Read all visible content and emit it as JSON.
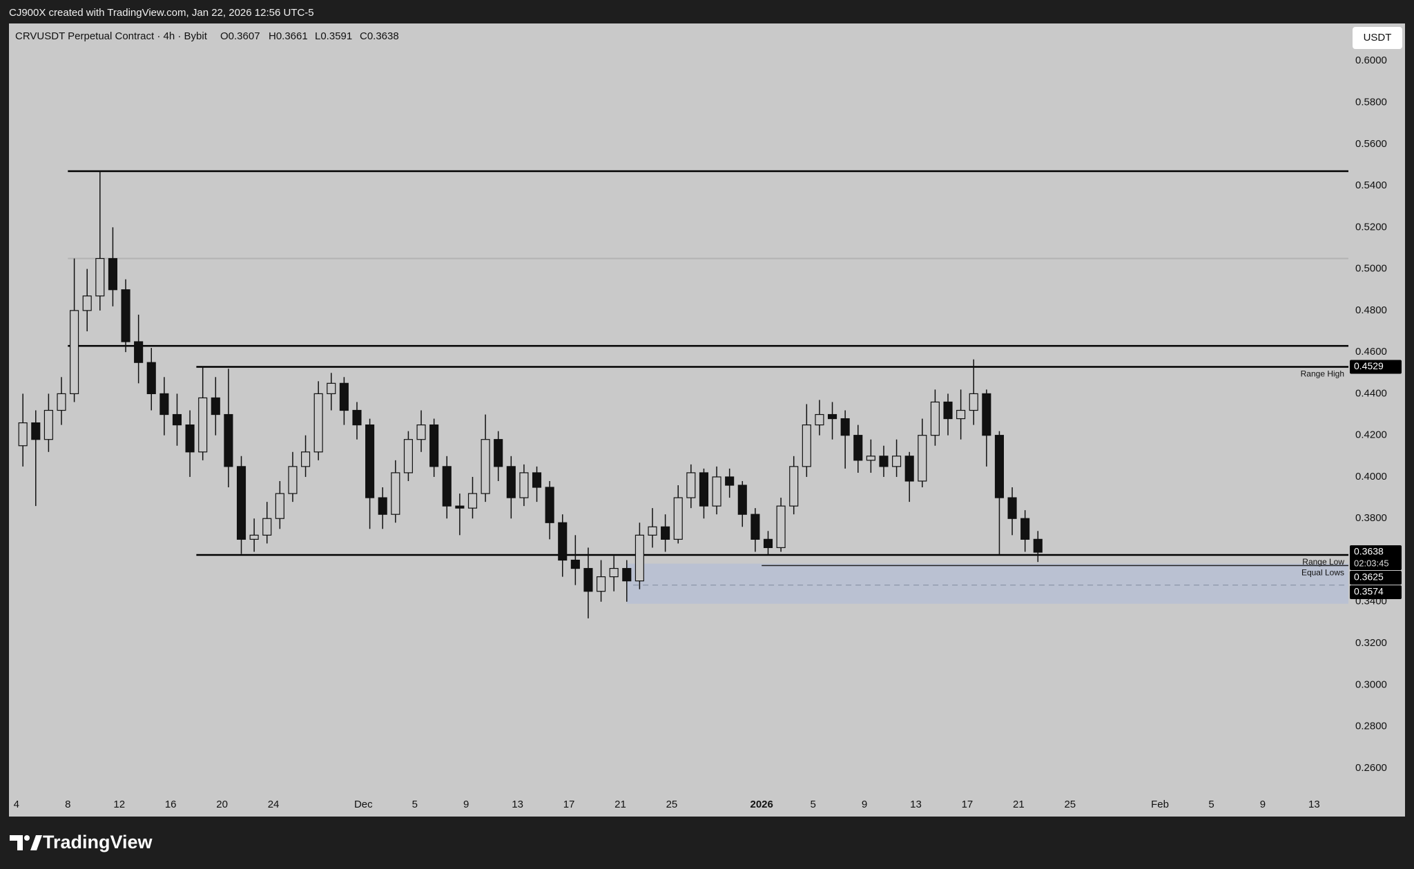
{
  "header": {
    "attribution": "CJ900X created with TradingView.com, Jan 22, 2026 12:56 UTC-5",
    "symbol": "CRVUSDT Perpetual Contract · 4h · Bybit",
    "ohlc": [
      "O0.3607",
      "H0.3661",
      "L0.3591",
      "C0.3638"
    ],
    "currency": "USDT",
    "logo": "TradingView"
  },
  "chart_data": {
    "type": "candlestick",
    "up_color": "#c9c9c9",
    "down_color": "#111111",
    "wick_color": "#111111",
    "x": [
      "2025-11-04",
      "2025-11-05",
      "2025-11-06",
      "2025-11-07",
      "2025-11-08",
      "2025-11-09",
      "2025-11-10",
      "2025-11-11",
      "2025-11-12",
      "2025-11-13",
      "2025-11-14",
      "2025-11-15",
      "2025-11-16",
      "2025-11-17",
      "2025-11-18",
      "2025-11-19",
      "2025-11-20",
      "2025-11-21",
      "2025-11-22",
      "2025-11-23",
      "2025-11-24",
      "2025-11-25",
      "2025-11-26",
      "2025-11-27",
      "2025-11-28",
      "2025-11-29",
      "2025-11-30",
      "2025-12-01",
      "2025-12-02",
      "2025-12-03",
      "2025-12-04",
      "2025-12-05",
      "2025-12-06",
      "2025-12-07",
      "2025-12-08",
      "2025-12-09",
      "2025-12-10",
      "2025-12-11",
      "2025-12-12",
      "2025-12-13",
      "2025-12-14",
      "2025-12-15",
      "2025-12-16",
      "2025-12-17",
      "2025-12-18",
      "2025-12-19",
      "2025-12-20",
      "2025-12-21",
      "2025-12-22",
      "2025-12-23",
      "2025-12-24",
      "2025-12-25",
      "2025-12-26",
      "2025-12-27",
      "2025-12-28",
      "2025-12-29",
      "2025-12-30",
      "2025-12-31",
      "2026-01-01",
      "2026-01-02",
      "2026-01-03",
      "2026-01-04",
      "2026-01-05",
      "2026-01-06",
      "2026-01-07",
      "2026-01-08",
      "2026-01-09",
      "2026-01-10",
      "2026-01-11",
      "2026-01-12",
      "2026-01-13",
      "2026-01-14",
      "2026-01-15",
      "2026-01-16",
      "2026-01-17",
      "2026-01-18",
      "2026-01-19",
      "2026-01-20",
      "2026-01-21",
      "2026-01-22"
    ],
    "open": [
      0.415,
      0.426,
      0.418,
      0.432,
      0.44,
      0.48,
      0.487,
      0.505,
      0.49,
      0.465,
      0.455,
      0.44,
      0.43,
      0.425,
      0.412,
      0.438,
      0.43,
      0.405,
      0.37,
      0.372,
      0.38,
      0.392,
      0.405,
      0.412,
      0.44,
      0.445,
      0.432,
      0.425,
      0.39,
      0.382,
      0.402,
      0.418,
      0.425,
      0.405,
      0.386,
      0.385,
      0.392,
      0.418,
      0.405,
      0.39,
      0.402,
      0.395,
      0.378,
      0.36,
      0.356,
      0.345,
      0.352,
      0.356,
      0.35,
      0.372,
      0.376,
      0.37,
      0.39,
      0.402,
      0.386,
      0.4,
      0.396,
      0.382,
      0.37,
      0.366,
      0.386,
      0.405,
      0.425,
      0.43,
      0.428,
      0.42,
      0.408,
      0.41,
      0.405,
      0.41,
      0.398,
      0.42,
      0.436,
      0.428,
      0.432,
      0.44,
      0.42,
      0.39,
      0.38,
      0.37
    ],
    "high": [
      0.44,
      0.432,
      0.44,
      0.448,
      0.505,
      0.5,
      0.547,
      0.52,
      0.495,
      0.478,
      0.462,
      0.448,
      0.44,
      0.432,
      0.453,
      0.448,
      0.452,
      0.41,
      0.38,
      0.388,
      0.398,
      0.412,
      0.42,
      0.446,
      0.45,
      0.448,
      0.436,
      0.428,
      0.395,
      0.408,
      0.422,
      0.432,
      0.428,
      0.41,
      0.392,
      0.4,
      0.43,
      0.422,
      0.41,
      0.406,
      0.405,
      0.398,
      0.382,
      0.372,
      0.366,
      0.36,
      0.362,
      0.36,
      0.378,
      0.385,
      0.382,
      0.396,
      0.406,
      0.404,
      0.405,
      0.404,
      0.398,
      0.385,
      0.374,
      0.39,
      0.41,
      0.435,
      0.437,
      0.436,
      0.432,
      0.425,
      0.418,
      0.415,
      0.418,
      0.412,
      0.428,
      0.442,
      0.44,
      0.442,
      0.4565,
      0.442,
      0.422,
      0.395,
      0.384,
      0.374
    ],
    "low": [
      0.405,
      0.386,
      0.412,
      0.425,
      0.436,
      0.47,
      0.48,
      0.482,
      0.46,
      0.445,
      0.432,
      0.42,
      0.415,
      0.4,
      0.408,
      0.42,
      0.395,
      0.363,
      0.364,
      0.368,
      0.375,
      0.388,
      0.4,
      0.408,
      0.432,
      0.425,
      0.418,
      0.375,
      0.375,
      0.378,
      0.398,
      0.412,
      0.4,
      0.38,
      0.372,
      0.38,
      0.388,
      0.398,
      0.38,
      0.386,
      0.388,
      0.37,
      0.352,
      0.348,
      0.332,
      0.34,
      0.345,
      0.34,
      0.346,
      0.366,
      0.364,
      0.368,
      0.385,
      0.38,
      0.382,
      0.39,
      0.376,
      0.364,
      0.3625,
      0.364,
      0.382,
      0.4,
      0.42,
      0.418,
      0.404,
      0.402,
      0.402,
      0.4,
      0.4,
      0.388,
      0.395,
      0.415,
      0.42,
      0.418,
      0.425,
      0.405,
      0.3625,
      0.372,
      0.364,
      0.3591
    ],
    "close": [
      0.426,
      0.418,
      0.432,
      0.44,
      0.48,
      0.487,
      0.505,
      0.49,
      0.465,
      0.455,
      0.44,
      0.43,
      0.425,
      0.412,
      0.438,
      0.43,
      0.405,
      0.37,
      0.372,
      0.38,
      0.392,
      0.405,
      0.412,
      0.44,
      0.445,
      0.432,
      0.425,
      0.39,
      0.382,
      0.402,
      0.418,
      0.425,
      0.405,
      0.386,
      0.385,
      0.392,
      0.418,
      0.405,
      0.39,
      0.402,
      0.395,
      0.378,
      0.36,
      0.356,
      0.345,
      0.352,
      0.356,
      0.35,
      0.372,
      0.376,
      0.37,
      0.39,
      0.402,
      0.386,
      0.4,
      0.396,
      0.382,
      0.37,
      0.366,
      0.386,
      0.405,
      0.425,
      0.43,
      0.428,
      0.42,
      0.408,
      0.41,
      0.405,
      0.41,
      0.398,
      0.42,
      0.436,
      0.428,
      0.432,
      0.44,
      0.42,
      0.39,
      0.38,
      0.37,
      0.3638
    ],
    "xlim": [
      "2025-11-03T10:00:00Z",
      "2026-02-15T16:00:00Z"
    ],
    "xticks": [
      {
        "value": "2025-11-04",
        "label": "4"
      },
      {
        "value": "2025-11-08",
        "label": "8"
      },
      {
        "value": "2025-11-12",
        "label": "12"
      },
      {
        "value": "2025-11-16",
        "label": "16"
      },
      {
        "value": "2025-11-20",
        "label": "20"
      },
      {
        "value": "2025-11-24",
        "label": "24"
      },
      {
        "value": "2025-12-01",
        "label": "Dec"
      },
      {
        "value": "2025-12-05",
        "label": "5"
      },
      {
        "value": "2025-12-09",
        "label": "9"
      },
      {
        "value": "2025-12-13",
        "label": "13"
      },
      {
        "value": "2025-12-17",
        "label": "17"
      },
      {
        "value": "2025-12-21",
        "label": "21"
      },
      {
        "value": "2025-12-25",
        "label": "25"
      },
      {
        "value": "2026-01-01",
        "label": "2026"
      },
      {
        "value": "2026-01-05",
        "label": "5"
      },
      {
        "value": "2026-01-09",
        "label": "9"
      },
      {
        "value": "2026-01-13",
        "label": "13"
      },
      {
        "value": "2026-01-17",
        "label": "17"
      },
      {
        "value": "2026-01-21",
        "label": "21"
      },
      {
        "value": "2026-01-25",
        "label": "25"
      },
      {
        "value": "2026-02-01",
        "label": "Feb"
      },
      {
        "value": "2026-02-05",
        "label": "5"
      },
      {
        "value": "2026-02-09",
        "label": "9"
      },
      {
        "value": "2026-02-13",
        "label": "13"
      }
    ],
    "ylim": [
      0.248,
      0.618
    ],
    "yticks": [
      {
        "value": 0.26,
        "label": "0.2600"
      },
      {
        "value": 0.28,
        "label": "0.2800"
      },
      {
        "value": 0.3,
        "label": "0.3000"
      },
      {
        "value": 0.32,
        "label": "0.3200"
      },
      {
        "value": 0.34,
        "label": "0.3400"
      },
      {
        "value": 0.38,
        "label": "0.3800"
      },
      {
        "value": 0.4,
        "label": "0.4000"
      },
      {
        "value": 0.42,
        "label": "0.4200"
      },
      {
        "value": 0.44,
        "label": "0.4400"
      },
      {
        "value": 0.46,
        "label": "0.4600"
      },
      {
        "value": 0.48,
        "label": "0.4800"
      },
      {
        "value": 0.5,
        "label": "0.5000"
      },
      {
        "value": 0.52,
        "label": "0.5200"
      },
      {
        "value": 0.54,
        "label": "0.5400"
      },
      {
        "value": 0.56,
        "label": "0.5600"
      },
      {
        "value": 0.58,
        "label": "0.5800"
      },
      {
        "value": 0.6,
        "label": "0.6000"
      }
    ],
    "grid": false,
    "levels": [
      {
        "value": 0.547,
        "start": "2025-11-08",
        "color": "#000000",
        "width": 2.5,
        "dashed": false
      },
      {
        "value": 0.505,
        "start": "2025-11-08",
        "color": "#b3b3b3",
        "width": 2,
        "dashed": false
      },
      {
        "value": 0.463,
        "start": "2025-11-08",
        "color": "#000000",
        "width": 2.5,
        "dashed": false
      },
      {
        "value": 0.4529,
        "start": "2025-11-18",
        "color": "#000000",
        "width": 2.5,
        "dashed": false,
        "label": "Range High"
      },
      {
        "value": 0.3625,
        "start": "2025-11-18",
        "color": "#000000",
        "width": 2.5,
        "dashed": false,
        "label": "Range Low"
      },
      {
        "value": 0.3574,
        "start": "2026-01-01",
        "color": "#222222",
        "width": 1.5,
        "dashed": false,
        "label": "Equal Lows"
      },
      {
        "value": 0.348,
        "start": "2025-12-22",
        "color": "#8b95a8",
        "width": 1.2,
        "dashed": true
      }
    ],
    "zone": {
      "top": 0.3583,
      "bottom": 0.339,
      "start": "2025-12-21T12:00:00Z",
      "color": "#b7c0d3"
    },
    "price_tags": [
      {
        "value": 0.4529,
        "label": "0.4529"
      },
      {
        "value": 0.3638,
        "label": "0.3638",
        "countdown": "02:03:45"
      },
      {
        "value": 0.3625,
        "label": "0.3625"
      },
      {
        "value": 0.3574,
        "label": "0.3574"
      }
    ]
  }
}
